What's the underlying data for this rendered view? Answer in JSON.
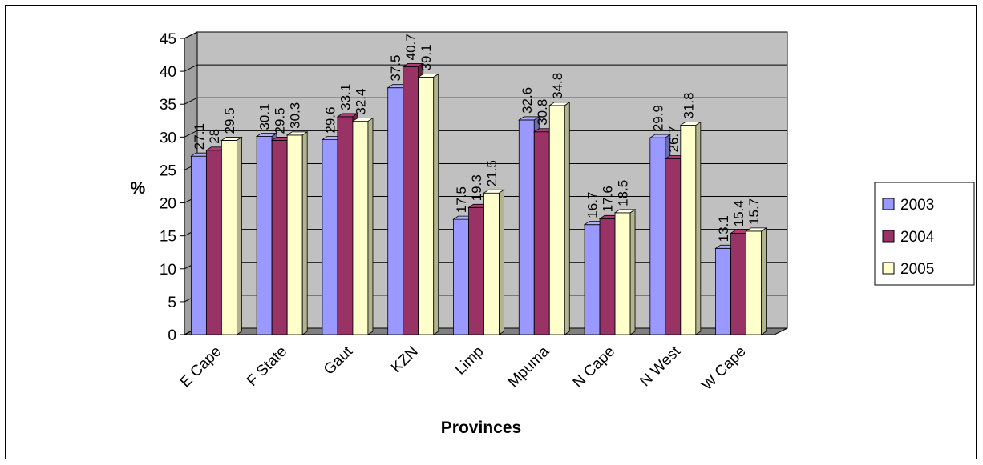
{
  "chart_data": {
    "type": "bar",
    "style": "3d-clustered-column",
    "title": "",
    "xlabel": "Provinces",
    "ylabel": "%",
    "ylim": [
      0,
      45
    ],
    "yticks": [
      0,
      5,
      10,
      15,
      20,
      25,
      30,
      35,
      40,
      45
    ],
    "grid": true,
    "legend_position": "right",
    "categories": [
      "E Cape",
      "F State",
      "Gaut",
      "KZN",
      "Limp",
      "Mpuma",
      "N Cape",
      "N West",
      "W Cape"
    ],
    "series": [
      {
        "name": "2003",
        "color": "#9999ff",
        "values": [
          27.1,
          30.1,
          29.6,
          37.5,
          17.5,
          32.6,
          16.7,
          29.9,
          13.1
        ]
      },
      {
        "name": "2004",
        "color": "#993366",
        "values": [
          28,
          29.5,
          33.1,
          40.7,
          19.3,
          30.8,
          17.6,
          26.7,
          15.4
        ]
      },
      {
        "name": "2005",
        "color": "#ffffcc",
        "values": [
          29.5,
          30.3,
          32.4,
          39.1,
          21.5,
          34.8,
          18.5,
          31.8,
          15.7
        ]
      }
    ],
    "colors": {
      "wall": "#c0c0c0",
      "floor": "#808080"
    }
  }
}
